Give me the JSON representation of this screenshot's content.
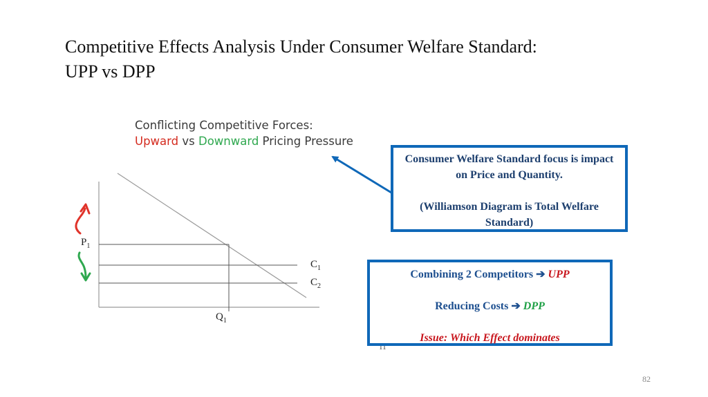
{
  "slide": {
    "title_line1": "Competitive Effects Analysis Under Consumer Welfare Standard:",
    "title_line2": "UPP vs DPP",
    "page_number": "82",
    "footnote": "11"
  },
  "diagram": {
    "title_line1": "Conflicting Competitive Forces:",
    "upward": "Upward",
    "vs": " vs ",
    "downward": "Downward",
    "rest": " Pricing Pressure",
    "label_p": "P",
    "label_p_sub": "1",
    "label_c1": "C",
    "label_c1_sub": "1",
    "label_c2": "C",
    "label_c2_sub": "2",
    "label_q": "Q",
    "label_q_sub": "1",
    "colors": {
      "upward": "#d42b1f",
      "downward": "#2fa84f",
      "callout_border": "#0f68b8"
    }
  },
  "callout_1": {
    "line1": "Consumer Welfare Standard focus is impact on Price and Quantity.",
    "line2": "(Williamson Diagram is Total Welfare Standard)"
  },
  "callout_2": {
    "combining": "Combining 2 Competitors ",
    "arrow": "➔",
    "upp": "UPP",
    "reducing": "Reducing Costs ",
    "dpp": "DPP",
    "issue": "Issue: Which Effect dominates"
  }
}
